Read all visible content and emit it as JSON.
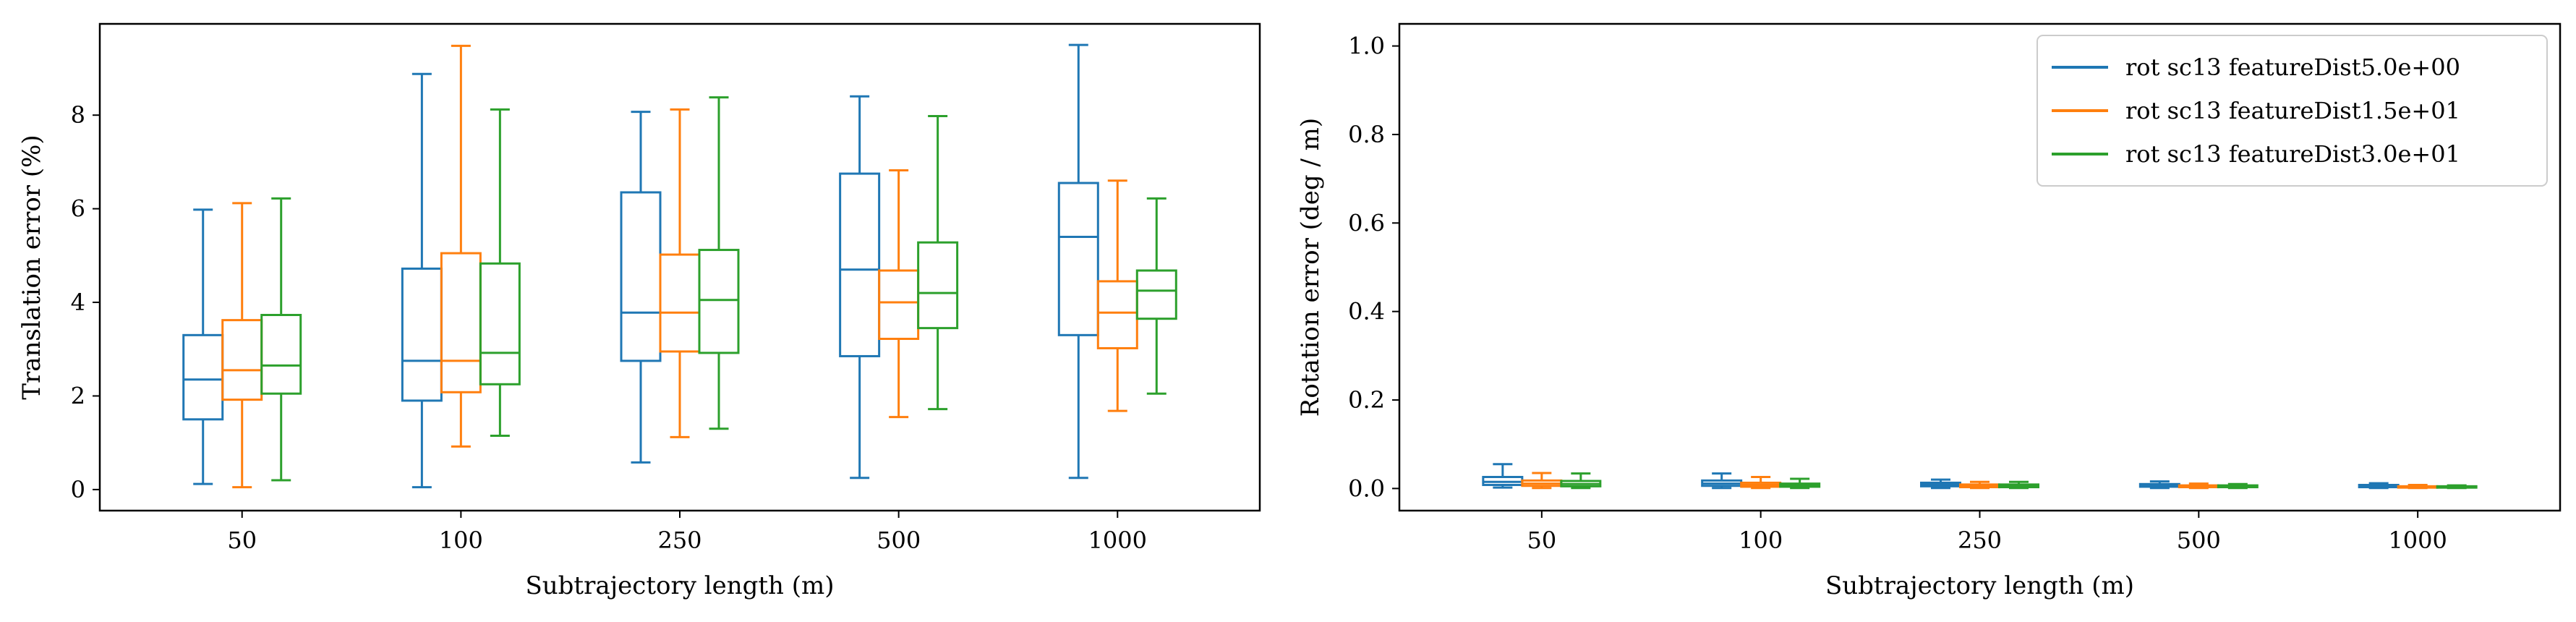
{
  "chart_data": [
    {
      "type": "box",
      "xlabel": "Subtrajectory length (m)",
      "ylabel": "Translation error (%)",
      "categories": [
        "50",
        "100",
        "250",
        "500",
        "1000"
      ],
      "ylim": [
        -0.45,
        9.95
      ],
      "yticks": [
        0,
        2,
        4,
        6,
        8
      ],
      "grid": false,
      "series": [
        {
          "color": "#1f77b4",
          "boxes": [
            {
              "min": 0.12,
              "q1": 1.5,
              "median": 2.35,
              "q3": 3.3,
              "max": 5.98
            },
            {
              "min": 0.05,
              "q1": 1.9,
              "median": 2.75,
              "q3": 4.72,
              "max": 8.88
            },
            {
              "min": 0.58,
              "q1": 2.75,
              "median": 3.78,
              "q3": 6.35,
              "max": 8.07
            },
            {
              "min": 0.25,
              "q1": 2.85,
              "median": 4.7,
              "q3": 6.75,
              "max": 8.4
            },
            {
              "min": 0.25,
              "q1": 3.3,
              "median": 5.4,
              "q3": 6.55,
              "max": 9.5
            }
          ]
        },
        {
          "color": "#ff7f0e",
          "boxes": [
            {
              "min": 0.05,
              "q1": 1.92,
              "median": 2.55,
              "q3": 3.62,
              "max": 6.12
            },
            {
              "min": 0.92,
              "q1": 2.08,
              "median": 2.75,
              "q3": 5.05,
              "max": 9.48
            },
            {
              "min": 1.12,
              "q1": 2.95,
              "median": 3.78,
              "q3": 5.02,
              "max": 8.12
            },
            {
              "min": 1.55,
              "q1": 3.22,
              "median": 4.0,
              "q3": 4.68,
              "max": 6.82
            },
            {
              "min": 1.68,
              "q1": 3.02,
              "median": 3.78,
              "q3": 4.45,
              "max": 6.6
            }
          ]
        },
        {
          "color": "#2ca02c",
          "boxes": [
            {
              "min": 0.2,
              "q1": 2.05,
              "median": 2.65,
              "q3": 3.73,
              "max": 6.22
            },
            {
              "min": 1.15,
              "q1": 2.25,
              "median": 2.92,
              "q3": 4.83,
              "max": 8.12
            },
            {
              "min": 1.3,
              "q1": 2.92,
              "median": 4.05,
              "q3": 5.12,
              "max": 8.38
            },
            {
              "min": 1.72,
              "q1": 3.45,
              "median": 4.2,
              "q3": 5.28,
              "max": 7.98
            },
            {
              "min": 2.05,
              "q1": 3.65,
              "median": 4.25,
              "q3": 4.68,
              "max": 6.22
            }
          ]
        }
      ]
    },
    {
      "type": "box",
      "xlabel": "Subtrajectory length (m)",
      "ylabel": "Rotation error (deg / m)",
      "categories": [
        "50",
        "100",
        "250",
        "500",
        "1000"
      ],
      "ylim": [
        -0.05,
        1.05
      ],
      "yticks": [
        0.0,
        0.2,
        0.4,
        0.6,
        0.8,
        1.0
      ],
      "grid": false,
      "legend_placement": "top-right",
      "series": [
        {
          "name": "rot sc13 featureDist5.0e+00",
          "color": "#1f77b4",
          "boxes": [
            {
              "min": 0.002,
              "q1": 0.008,
              "median": 0.015,
              "q3": 0.026,
              "max": 0.055
            },
            {
              "min": 0.001,
              "q1": 0.006,
              "median": 0.011,
              "q3": 0.018,
              "max": 0.034
            },
            {
              "min": 0.001,
              "q1": 0.005,
              "median": 0.009,
              "q3": 0.013,
              "max": 0.02
            },
            {
              "min": 0.001,
              "q1": 0.004,
              "median": 0.007,
              "q3": 0.01,
              "max": 0.016
            },
            {
              "min": 0.001,
              "q1": 0.003,
              "median": 0.006,
              "q3": 0.008,
              "max": 0.012
            }
          ]
        },
        {
          "name": "rot sc13 featureDist1.5e+01",
          "color": "#ff7f0e",
          "boxes": [
            {
              "min": 0.001,
              "q1": 0.006,
              "median": 0.011,
              "q3": 0.018,
              "max": 0.035
            },
            {
              "min": 0.001,
              "q1": 0.004,
              "median": 0.008,
              "q3": 0.013,
              "max": 0.026
            },
            {
              "min": 0.001,
              "q1": 0.003,
              "median": 0.006,
              "q3": 0.009,
              "max": 0.015
            },
            {
              "min": 0.001,
              "q1": 0.003,
              "median": 0.005,
              "q3": 0.007,
              "max": 0.011
            },
            {
              "min": 0.001,
              "q1": 0.002,
              "median": 0.004,
              "q3": 0.005,
              "max": 0.008
            }
          ]
        },
        {
          "name": "rot sc13 featureDist3.0e+01",
          "color": "#2ca02c",
          "boxes": [
            {
              "min": 0.001,
              "q1": 0.005,
              "median": 0.01,
              "q3": 0.017,
              "max": 0.034
            },
            {
              "min": 0.001,
              "q1": 0.004,
              "median": 0.007,
              "q3": 0.011,
              "max": 0.022
            },
            {
              "min": 0.001,
              "q1": 0.003,
              "median": 0.006,
              "q3": 0.009,
              "max": 0.015
            },
            {
              "min": 0.001,
              "q1": 0.003,
              "median": 0.005,
              "q3": 0.007,
              "max": 0.01
            },
            {
              "min": 0.001,
              "q1": 0.002,
              "median": 0.004,
              "q3": 0.005,
              "max": 0.007
            }
          ]
        }
      ]
    }
  ]
}
